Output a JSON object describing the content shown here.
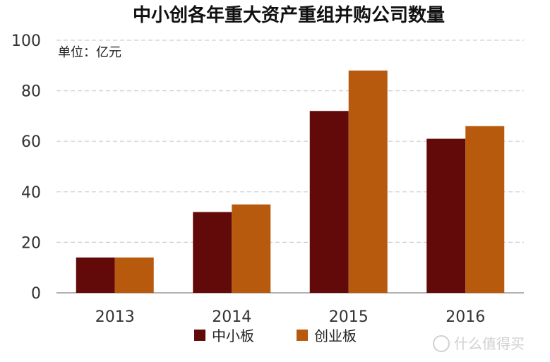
{
  "chart_data": {
    "type": "bar",
    "title": "中小创各年重大资产重组并购公司数量",
    "unit_label": "单位：亿元",
    "categories": [
      "2013",
      "2014",
      "2015",
      "2016"
    ],
    "series": [
      {
        "name": "中小板",
        "color": "#620a0a",
        "values": [
          14,
          32,
          72,
          61
        ]
      },
      {
        "name": "创业板",
        "color": "#b85a0e",
        "values": [
          14,
          35,
          88,
          66
        ]
      }
    ],
    "ylim": [
      0,
      100
    ],
    "yticks": [
      0,
      20,
      40,
      60,
      80,
      100
    ],
    "grid": true,
    "legend_position": "bottom"
  },
  "watermark": {
    "text": "什么值得买",
    "icon": "logo-icon"
  }
}
